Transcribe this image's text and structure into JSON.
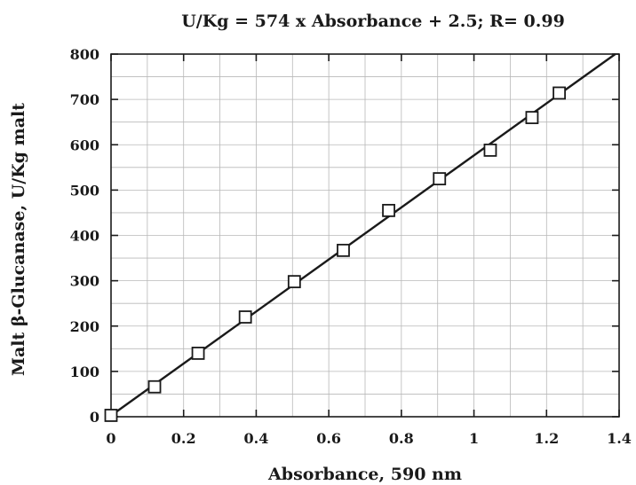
{
  "chart_data": {
    "type": "scatter",
    "title": "U/Kg =  574 x Absorbance + 2.5;  R= 0.99",
    "xlabel": "Absorbance,  590 nm",
    "ylabel": "Malt β-Glucanase, U/Kg malt",
    "xlim": [
      0,
      1.4
    ],
    "ylim": [
      0,
      800
    ],
    "x_ticks": [
      "0",
      "0.2",
      "0.4",
      "0.6",
      "0.8",
      "1",
      "1.2",
      "1.4"
    ],
    "y_ticks": [
      "0",
      "100",
      "200",
      "300",
      "400",
      "500",
      "600",
      "700",
      "800"
    ],
    "grid": true,
    "marker": "open-square",
    "series": [
      {
        "x": [
          0.0,
          0.12,
          0.24,
          0.37,
          0.505,
          0.64,
          0.765,
          0.905,
          1.045,
          1.16,
          1.235
        ],
        "y": [
          3,
          66,
          140,
          220,
          298,
          367,
          455,
          525,
          588,
          660,
          714
        ]
      }
    ],
    "fit_line": {
      "slope": 574,
      "intercept": 2.5,
      "x_range": [
        0,
        1.4
      ]
    }
  }
}
